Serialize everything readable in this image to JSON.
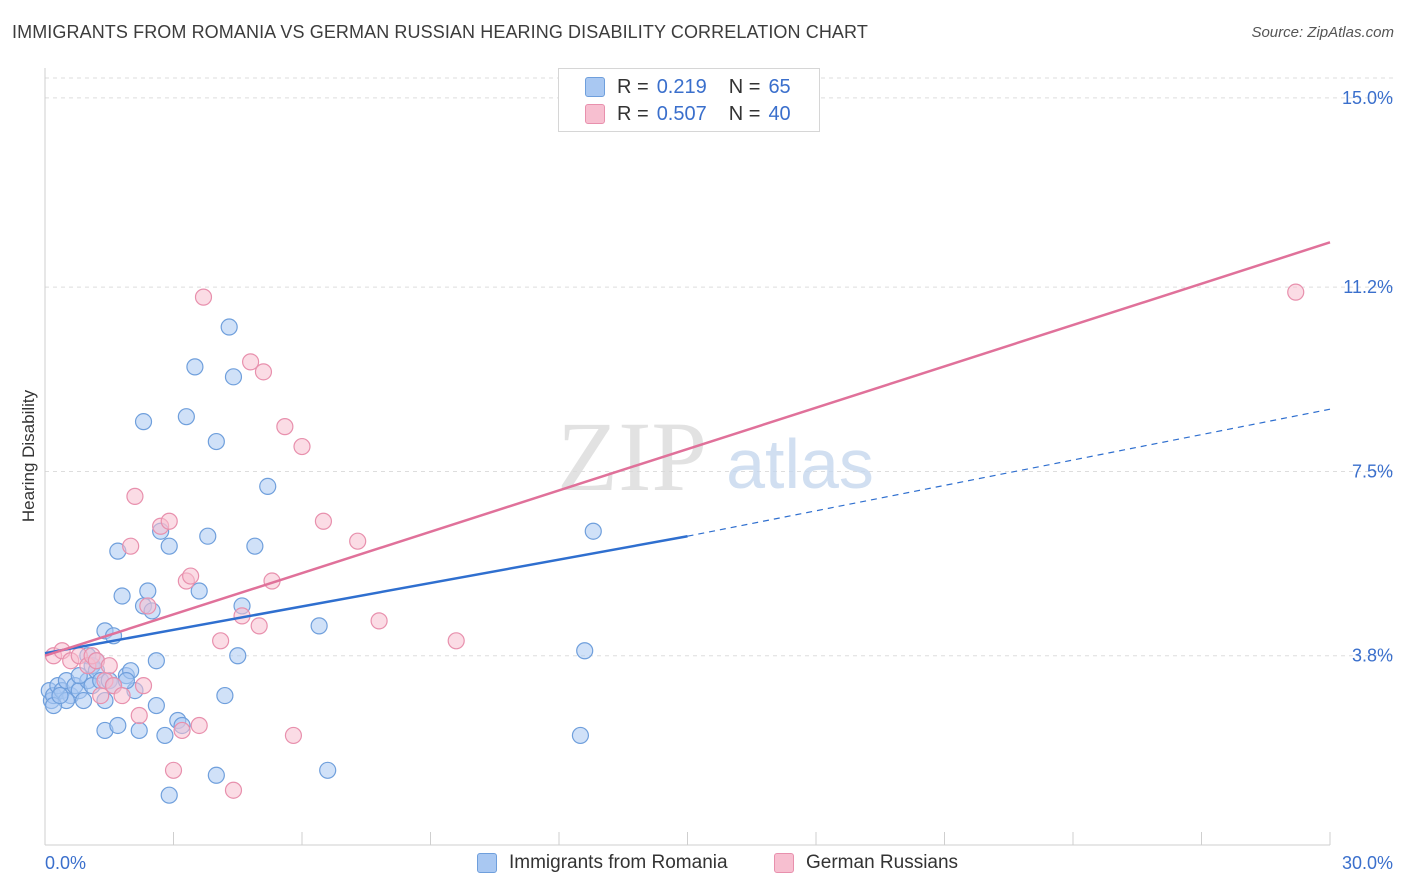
{
  "header": {
    "title": "IMMIGRANTS FROM ROMANIA VS GERMAN RUSSIAN HEARING DISABILITY CORRELATION CHART",
    "source": "Source: ZipAtlas.com"
  },
  "legend_top": {
    "rows": [
      {
        "r_label": "R =",
        "r_value": "0.219",
        "n_label": "N =",
        "n_value": "65",
        "color": "#a9c8f2",
        "border": "#6f9fdc"
      },
      {
        "r_label": "R =",
        "r_value": "0.507",
        "n_label": "N =",
        "n_value": "40",
        "color": "#f7bfd0",
        "border": "#e890ad"
      }
    ]
  },
  "watermark": {
    "zip": "ZIP",
    "atlas": "atlas"
  },
  "chart_data": {
    "type": "scatter",
    "title": "IMMIGRANTS FROM ROMANIA VS GERMAN RUSSIAN HEARING DISABILITY CORRELATION CHART",
    "xlabel": "",
    "ylabel": "Hearing Disability",
    "xlim": [
      0,
      30
    ],
    "ylim": [
      0,
      15.4
    ],
    "x_tick_labels": [
      "0.0%",
      "30.0%"
    ],
    "y_ticks": [
      3.8,
      7.5,
      11.2,
      15.0
    ],
    "y_tick_labels": [
      "3.8%",
      "7.5%",
      "11.2%",
      "15.0%"
    ],
    "grid": true,
    "legend_position": "top-center",
    "series": [
      {
        "name": "Immigrants from Romania",
        "color": "#a9c8f2",
        "stroke": "#6f9fdc",
        "line_color": "#2f6fcf",
        "trend": {
          "x0": 0,
          "y0": 3.85,
          "x1": 15,
          "y1": 6.2,
          "dashed_to_x": 30,
          "dashed_to_y": 8.75
        },
        "points": [
          [
            0.1,
            3.1
          ],
          [
            0.15,
            2.9
          ],
          [
            0.2,
            3.0
          ],
          [
            0.3,
            3.2
          ],
          [
            0.4,
            3.1
          ],
          [
            0.5,
            3.3
          ],
          [
            0.6,
            3.0
          ],
          [
            0.7,
            3.2
          ],
          [
            0.8,
            3.1
          ],
          [
            0.9,
            2.9
          ],
          [
            1.0,
            3.3
          ],
          [
            1.1,
            3.2
          ],
          [
            1.0,
            3.8
          ],
          [
            1.1,
            3.6
          ],
          [
            1.2,
            3.5
          ],
          [
            1.3,
            3.3
          ],
          [
            1.4,
            2.9
          ],
          [
            1.4,
            2.3
          ],
          [
            1.4,
            4.3
          ],
          [
            1.6,
            4.2
          ],
          [
            1.5,
            3.3
          ],
          [
            1.6,
            3.2
          ],
          [
            1.7,
            2.4
          ],
          [
            1.7,
            5.9
          ],
          [
            1.8,
            5.0
          ],
          [
            1.9,
            3.4
          ],
          [
            2.0,
            3.5
          ],
          [
            2.1,
            3.1
          ],
          [
            2.2,
            2.3
          ],
          [
            2.3,
            4.8
          ],
          [
            2.4,
            5.1
          ],
          [
            2.5,
            4.7
          ],
          [
            2.6,
            3.7
          ],
          [
            2.6,
            2.8
          ],
          [
            2.7,
            6.3
          ],
          [
            2.8,
            2.2
          ],
          [
            2.9,
            6.0
          ],
          [
            2.9,
            1.0
          ],
          [
            3.1,
            2.5
          ],
          [
            3.2,
            2.4
          ],
          [
            3.3,
            8.6
          ],
          [
            3.5,
            9.6
          ],
          [
            3.6,
            5.1
          ],
          [
            3.8,
            6.2
          ],
          [
            4.0,
            1.4
          ],
          [
            4.0,
            8.1
          ],
          [
            4.2,
            3.0
          ],
          [
            4.3,
            10.4
          ],
          [
            4.4,
            9.4
          ],
          [
            4.5,
            3.8
          ],
          [
            4.6,
            4.8
          ],
          [
            4.9,
            6.0
          ],
          [
            5.2,
            7.2
          ],
          [
            2.3,
            8.5
          ],
          [
            0.5,
            2.9
          ],
          [
            6.4,
            4.4
          ],
          [
            6.6,
            1.5
          ],
          [
            12.5,
            2.2
          ],
          [
            12.6,
            3.9
          ],
          [
            12.8,
            6.3
          ],
          [
            0.2,
            2.8
          ],
          [
            0.35,
            3.0
          ],
          [
            0.8,
            3.4
          ],
          [
            1.9,
            3.3
          ],
          [
            1.2,
            3.7
          ]
        ]
      },
      {
        "name": "German Russians",
        "color": "#f7bfd0",
        "stroke": "#e890ad",
        "line_color": "#e0719a",
        "trend": {
          "x0": 0,
          "y0": 3.8,
          "x1": 30,
          "y1": 12.1
        },
        "points": [
          [
            0.2,
            3.8
          ],
          [
            0.4,
            3.9
          ],
          [
            0.6,
            3.7
          ],
          [
            0.8,
            3.8
          ],
          [
            1.0,
            3.6
          ],
          [
            1.1,
            3.8
          ],
          [
            1.2,
            3.7
          ],
          [
            1.3,
            3.0
          ],
          [
            1.4,
            3.3
          ],
          [
            1.6,
            3.2
          ],
          [
            1.8,
            3.0
          ],
          [
            2.0,
            6.0
          ],
          [
            2.1,
            7.0
          ],
          [
            2.2,
            2.6
          ],
          [
            2.3,
            3.2
          ],
          [
            2.4,
            4.8
          ],
          [
            2.7,
            6.4
          ],
          [
            2.9,
            6.5
          ],
          [
            3.0,
            1.5
          ],
          [
            3.2,
            2.3
          ],
          [
            3.3,
            5.3
          ],
          [
            3.4,
            5.4
          ],
          [
            3.6,
            2.4
          ],
          [
            3.7,
            11.0
          ],
          [
            4.1,
            4.1
          ],
          [
            4.4,
            1.1
          ],
          [
            4.6,
            4.6
          ],
          [
            4.8,
            9.7
          ],
          [
            5.0,
            4.4
          ],
          [
            5.1,
            9.5
          ],
          [
            5.3,
            5.3
          ],
          [
            5.6,
            8.4
          ],
          [
            5.8,
            2.2
          ],
          [
            6.0,
            8.0
          ],
          [
            6.5,
            6.5
          ],
          [
            7.3,
            6.1
          ],
          [
            7.8,
            4.5
          ],
          [
            9.6,
            4.1
          ],
          [
            29.2,
            11.1
          ],
          [
            1.5,
            3.6
          ]
        ]
      }
    ]
  }
}
